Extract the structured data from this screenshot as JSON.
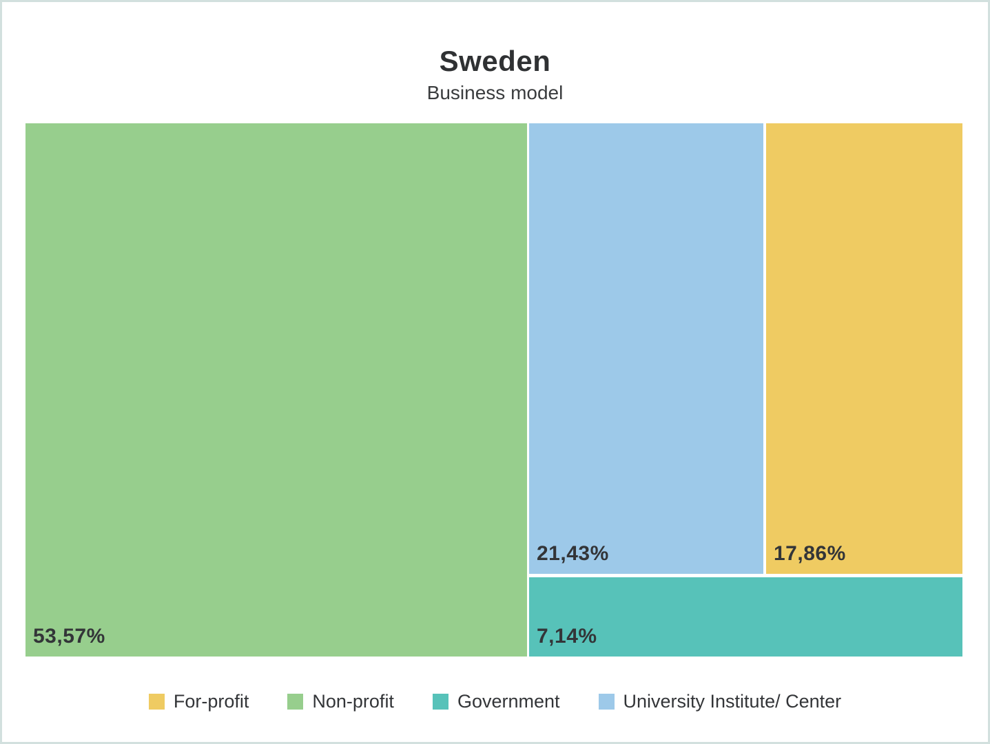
{
  "title": "Sweden",
  "subtitle": "Business model",
  "chart_data": {
    "type": "treemap",
    "title": "Sweden",
    "subtitle": "Business model",
    "value_format": "percent, comma decimal separator",
    "tiles": [
      {
        "label": "Non-profit",
        "value": 53.57,
        "display": "53,57%",
        "color": "#97ce8d"
      },
      {
        "label": "University Institute/ Center",
        "value": 21.43,
        "display": "21,43%",
        "color": "#9dc9e9"
      },
      {
        "label": "For-profit",
        "value": 17.86,
        "display": "17,86%",
        "color": "#efcb62"
      },
      {
        "label": "Government",
        "value": 7.14,
        "display": "7,14%",
        "color": "#57c2b9"
      }
    ],
    "legend_position": "bottom"
  },
  "legend": {
    "items": [
      {
        "label": "For-profit",
        "color": "#efcb62"
      },
      {
        "label": "Non-profit",
        "color": "#97ce8d"
      },
      {
        "label": "Government",
        "color": "#57c2b9"
      },
      {
        "label": "University Institute/ Center",
        "color": "#9dc9e9"
      }
    ]
  },
  "frame": {
    "border_color": "#d2e0de",
    "background": "#ffffff"
  }
}
